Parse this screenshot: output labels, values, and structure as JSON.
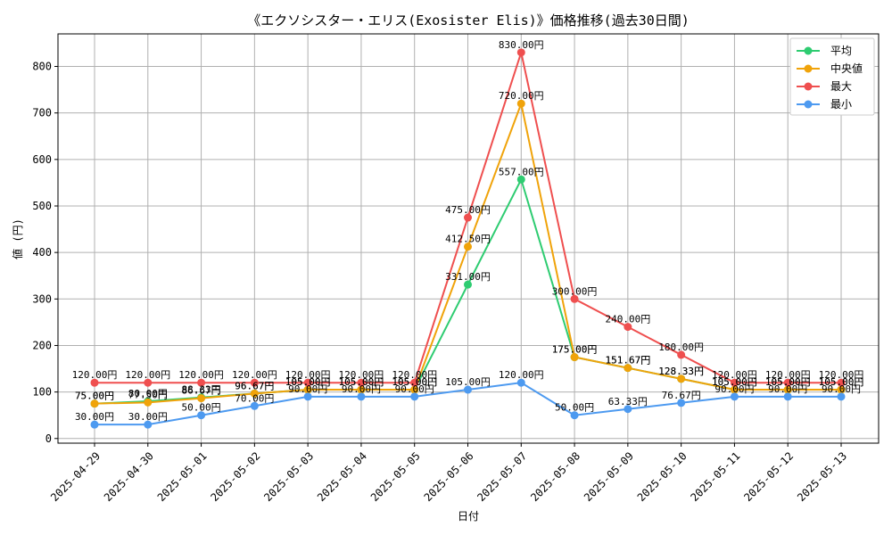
{
  "chart_data": {
    "type": "line",
    "title": "《エクソシスター・エリス(Exosister Elis)》価格推移(過去30日間)",
    "xlabel": "日付",
    "ylabel": "値 (円)",
    "ylim": [
      -10,
      870
    ],
    "yticks": [
      0,
      100,
      200,
      300,
      400,
      500,
      600,
      700,
      800
    ],
    "grid": true,
    "legend_position": "top-right",
    "categories": [
      "2025-04-29",
      "2025-04-30",
      "2025-05-01",
      "2025-05-02",
      "2025-05-03",
      "2025-05-04",
      "2025-05-05",
      "2025-05-06",
      "2025-05-07",
      "2025-05-08",
      "2025-05-09",
      "2025-05-10",
      "2025-05-11",
      "2025-05-12",
      "2025-05-13"
    ],
    "series": [
      {
        "name": "平均",
        "color": "#2ecc71",
        "values": [
          75.0,
          80.0,
          88.33,
          96.67,
          105.0,
          105.0,
          105.0,
          331.0,
          557.0,
          175.0,
          151.67,
          128.33,
          105.0,
          105.0,
          105.0
        ],
        "labels": [
          "75.00円",
          "80.00円",
          "88.33円",
          "96.67円",
          "105.00円",
          "105.00円",
          "105.00円",
          "331.00円",
          "557.00円",
          "175.00円",
          "151.67円",
          "128.33円",
          "105.00円",
          "105.00円",
          "105.00円"
        ]
      },
      {
        "name": "中央値",
        "color": "#f0a30a",
        "values": [
          75.0,
          77.5,
          86.67,
          96.67,
          105.0,
          105.0,
          105.0,
          412.5,
          720.0,
          175.0,
          151.67,
          128.33,
          105.0,
          105.0,
          105.0
        ],
        "labels": [
          "75.00円",
          "77.50円",
          "86.67円",
          "96.67円",
          "105.00円",
          "105.00円",
          "105.00円",
          "412.50円",
          "720.00円",
          "175.00円",
          "151.67円",
          "128.33円",
          "105.00円",
          "105.00円",
          "105.00円"
        ]
      },
      {
        "name": "最大",
        "color": "#ef4f4f",
        "values": [
          120.0,
          120.0,
          120.0,
          120.0,
          120.0,
          120.0,
          120.0,
          475.0,
          830.0,
          300.0,
          240.0,
          180.0,
          120.0,
          120.0,
          120.0
        ],
        "labels": [
          "120.00円",
          "120.00円",
          "120.00円",
          "120.00円",
          "120.00円",
          "120.00円",
          "120.00円",
          "475.00円",
          "830.00円",
          "300.00円",
          "240.00円",
          "180.00円",
          "120.00円",
          "120.00円",
          "120.00円"
        ]
      },
      {
        "name": "最小",
        "color": "#4d9af0",
        "values": [
          30.0,
          30.0,
          50.0,
          70.0,
          90.0,
          90.0,
          90.0,
          105.0,
          120.0,
          50.0,
          63.33,
          76.67,
          90.0,
          90.0,
          90.0
        ],
        "labels": [
          "30.00円",
          "30.00円",
          "50.00円",
          "70.00円",
          "90.00円",
          "90.00円",
          "90.00円",
          "105.00円",
          "120.00円",
          "50.00円",
          "63.33円",
          "76.67円",
          "90.00円",
          "90.00円",
          "90.00円"
        ]
      }
    ]
  }
}
